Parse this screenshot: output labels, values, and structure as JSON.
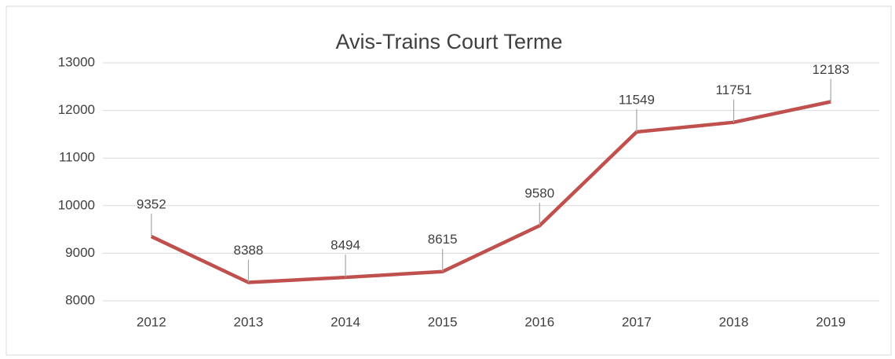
{
  "chart_data": {
    "type": "line",
    "title": "Avis-Trains Court Terme",
    "categories": [
      "2012",
      "2013",
      "2014",
      "2015",
      "2016",
      "2017",
      "2018",
      "2019"
    ],
    "series": [
      {
        "name": "Avis-Trains Court Terme",
        "color": "#c0504d",
        "values": [
          9352,
          8388,
          8494,
          8615,
          9580,
          11549,
          11751,
          12183
        ]
      }
    ],
    "ylim": [
      8000,
      13000
    ],
    "yticks": [
      8000,
      9000,
      10000,
      11000,
      12000,
      13000
    ],
    "grid": true
  }
}
